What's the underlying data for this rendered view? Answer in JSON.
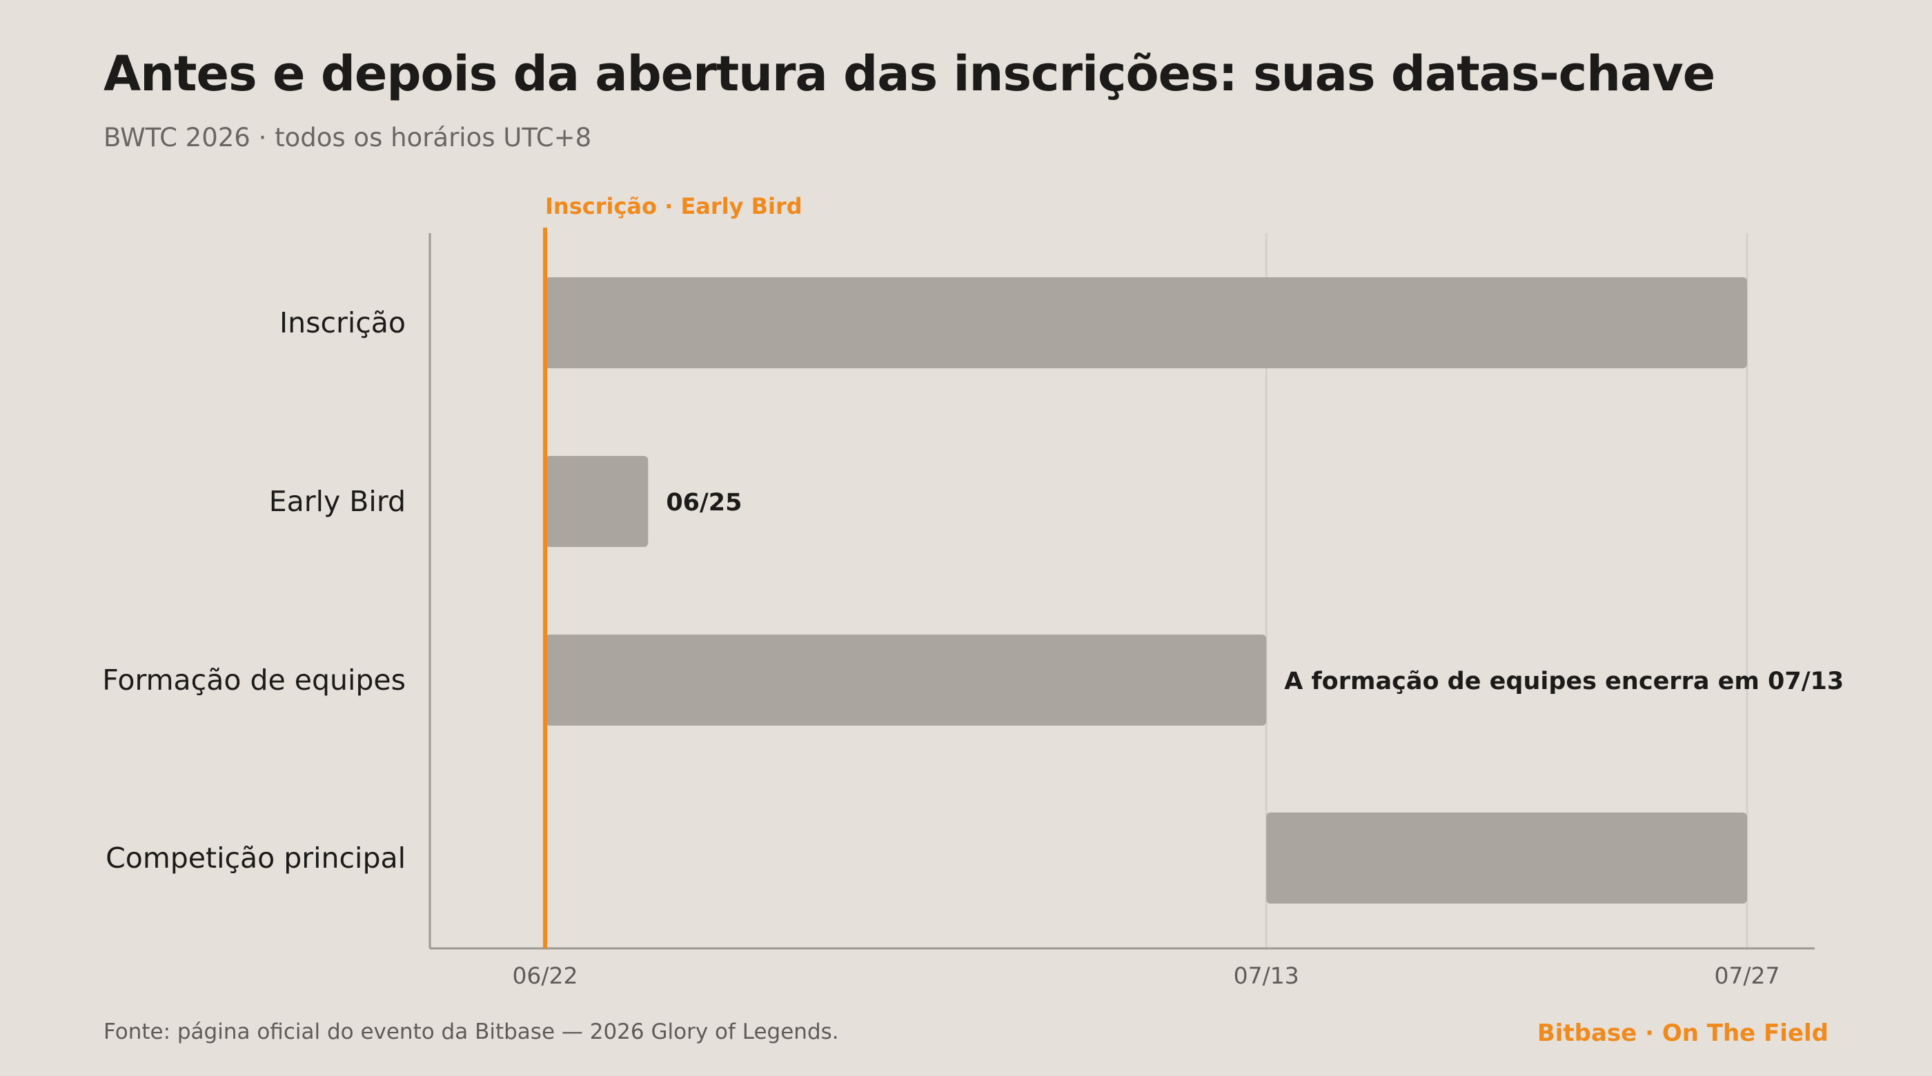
{
  "header": {
    "title": "Antes e depois da abertura das inscrições: suas datas-chave",
    "subtitle": "BWTC 2026 · todos os horários UTC+8"
  },
  "footer": {
    "source": "Fonte: página oficial do evento da Bitbase — 2026 Glory of Legends.",
    "brand": "Bitbase · On The Field"
  },
  "colors": {
    "background": "#e5e0da",
    "bar": "#aaa59f",
    "accent": "#f08a1c",
    "grid": "#d4d0ca",
    "axis": "#9c9892",
    "label": "#1c1b19",
    "tick": "#5f5c58"
  },
  "chart_data": {
    "type": "bar",
    "orientation": "horizontal-timeline",
    "x_ticks": [
      "06/22",
      "07/13",
      "07/27"
    ],
    "xlim": [
      "2026-06-22",
      "2026-07-27"
    ],
    "categories": [
      "Inscrição",
      "Early Bird",
      "Formação de equipes",
      "Competição principal"
    ],
    "bars": [
      {
        "category": "Inscrição",
        "start": "2026-06-22",
        "end": "2026-07-27",
        "label": ""
      },
      {
        "category": "Early Bird",
        "start": "2026-06-22",
        "end": "2026-06-25",
        "label": "06/25"
      },
      {
        "category": "Formação de equipes",
        "start": "2026-06-22",
        "end": "2026-07-13",
        "label": "A formação de equipes encerra em 07/13"
      },
      {
        "category": "Competição principal",
        "start": "2026-07-13",
        "end": "2026-07-27",
        "label": ""
      }
    ],
    "marker": {
      "date": "2026-06-22",
      "label": "Inscrição · Early Bird"
    },
    "gridlines": [
      "2026-07-13",
      "2026-07-27"
    ]
  }
}
